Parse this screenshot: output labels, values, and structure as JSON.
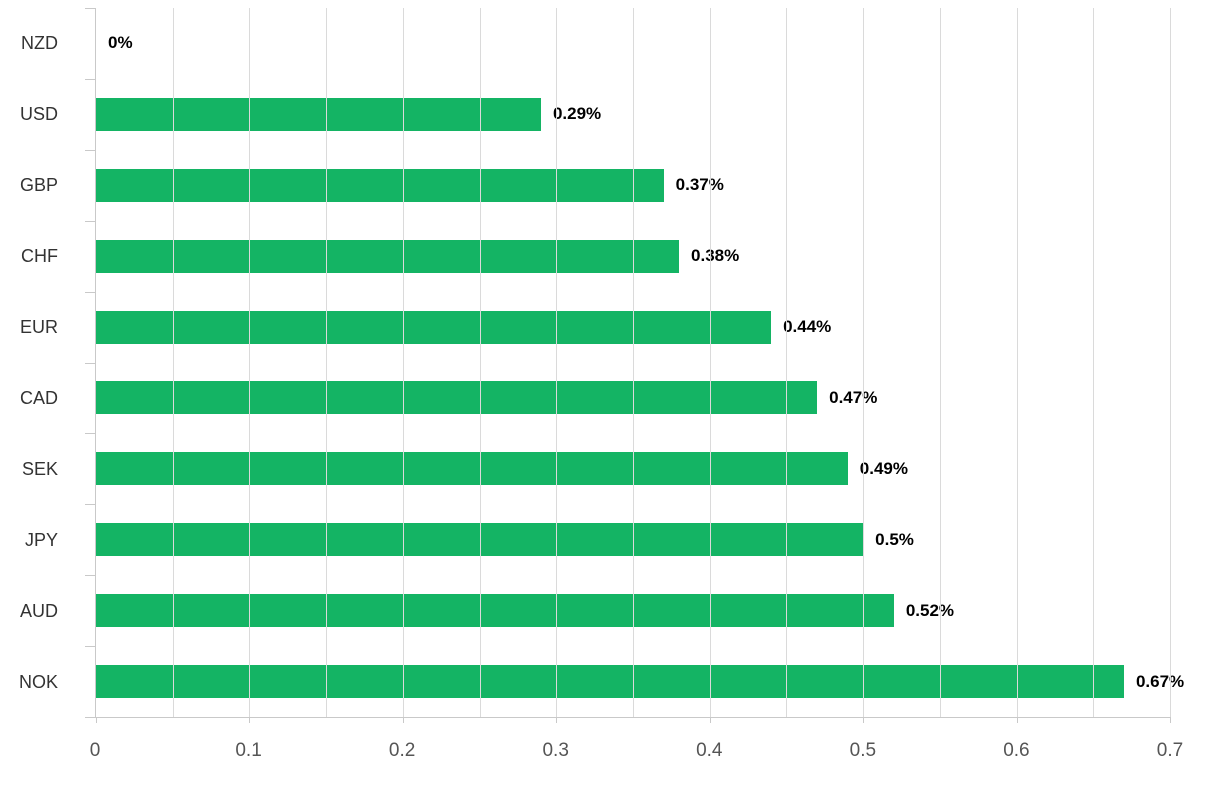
{
  "chart_data": {
    "type": "bar",
    "orientation": "horizontal",
    "title": "",
    "categories": [
      "NZD",
      "USD",
      "GBP",
      "CHF",
      "EUR",
      "CAD",
      "SEK",
      "JPY",
      "AUD",
      "NOK"
    ],
    "values": [
      0,
      0.29,
      0.37,
      0.38,
      0.44,
      0.47,
      0.49,
      0.5,
      0.52,
      0.67
    ],
    "value_labels": [
      "0%",
      "0.29%",
      "0.37%",
      "0.38%",
      "0.44%",
      "0.47%",
      "0.49%",
      "0.5%",
      "0.52%",
      "0.67%"
    ],
    "x_tick_labels": [
      "0",
      "0.1",
      "0.2",
      "0.3",
      "0.4",
      "0.5",
      "0.6",
      "0.7"
    ],
    "x_tick_values": [
      0,
      0.1,
      0.2,
      0.3,
      0.4,
      0.5,
      0.6,
      0.7
    ],
    "xlim": [
      0,
      0.7
    ],
    "grid": true,
    "grid_step": 0.05,
    "bar_color": "#14b464",
    "legend_position": "none",
    "xlabel": "",
    "ylabel": ""
  }
}
